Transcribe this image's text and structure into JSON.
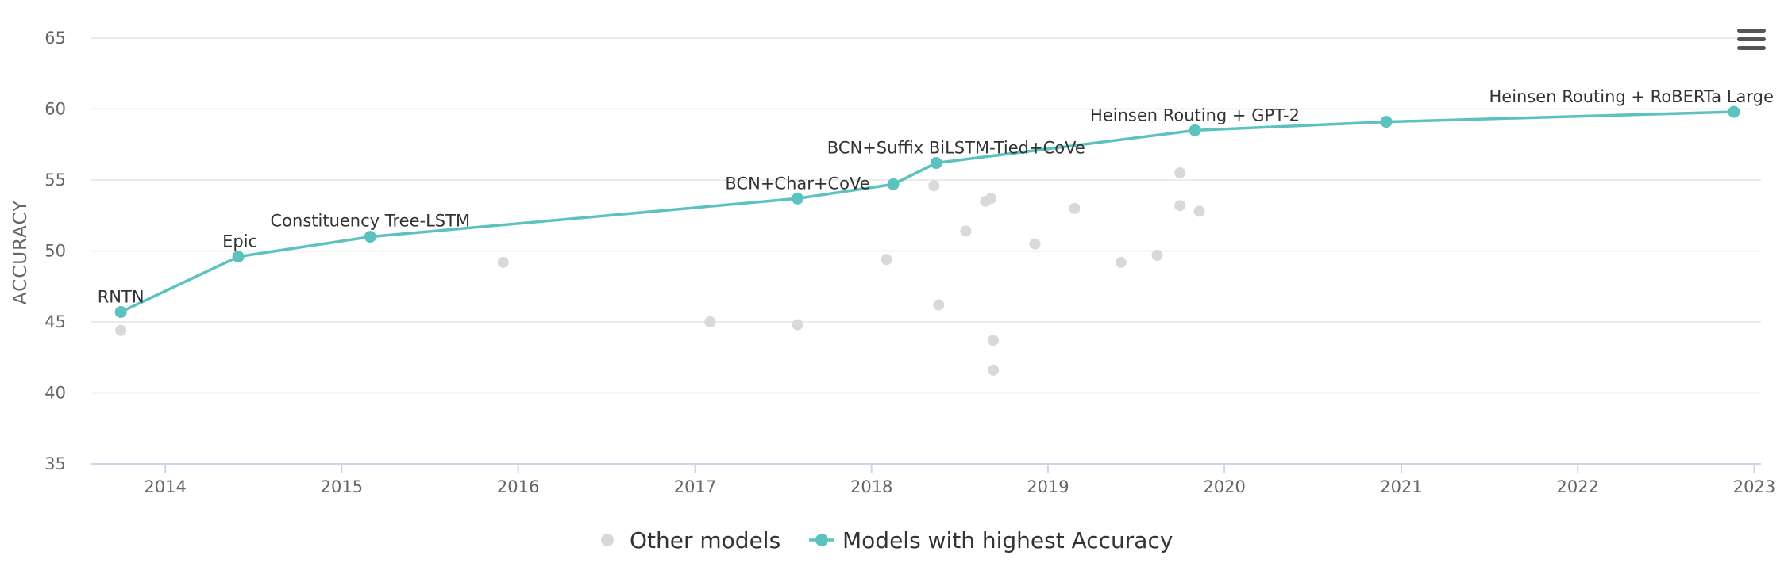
{
  "chart_data": {
    "type": "scatter",
    "xlabel": "",
    "ylabel": "ACCURACY",
    "ylim": [
      35,
      65
    ],
    "xlim": [
      "2013-08-01",
      "2023-01-15"
    ],
    "y_ticks": [
      35,
      40,
      45,
      50,
      55,
      60,
      65
    ],
    "x_ticks": [
      "2014",
      "2015",
      "2016",
      "2017",
      "2018",
      "2019",
      "2020",
      "2021",
      "2022",
      "2023"
    ],
    "grid": true,
    "legend_position": "bottom",
    "series": [
      {
        "name": "Other models",
        "color": "#d9d9d9",
        "mode": "markers",
        "points": [
          {
            "x": "2013-10-01",
            "y": 44.4
          },
          {
            "x": "2015-12-01",
            "y": 49.2
          },
          {
            "x": "2017-02-01",
            "y": 45.0
          },
          {
            "x": "2017-08-01",
            "y": 44.8
          },
          {
            "x": "2018-02-01",
            "y": 49.4
          },
          {
            "x": "2018-05-10",
            "y": 54.6
          },
          {
            "x": "2018-05-20",
            "y": 46.2
          },
          {
            "x": "2018-07-15",
            "y": 51.4
          },
          {
            "x": "2018-08-25",
            "y": 53.5
          },
          {
            "x": "2018-09-05",
            "y": 53.7
          },
          {
            "x": "2018-09-10",
            "y": 43.7
          },
          {
            "x": "2018-09-10",
            "y": 41.6
          },
          {
            "x": "2018-12-05",
            "y": 50.5
          },
          {
            "x": "2019-02-25",
            "y": 53.0
          },
          {
            "x": "2019-06-01",
            "y": 49.2
          },
          {
            "x": "2019-08-15",
            "y": 49.7
          },
          {
            "x": "2019-10-01",
            "y": 55.5
          },
          {
            "x": "2019-10-01",
            "y": 53.2
          },
          {
            "x": "2019-11-10",
            "y": 52.8
          }
        ]
      },
      {
        "name": "Models with highest Accuracy",
        "color": "#5bc2bf",
        "mode": "lines+markers",
        "points": [
          {
            "x": "2013-10-01",
            "y": 45.7,
            "label": "RNTN"
          },
          {
            "x": "2014-06-01",
            "y": 49.6,
            "label": "Epic"
          },
          {
            "x": "2015-03-01",
            "y": 51.0,
            "label": "Constituency Tree-LSTM"
          },
          {
            "x": "2017-08-01",
            "y": 53.7,
            "label": "BCN+Char+CoVe"
          },
          {
            "x": "2018-02-15",
            "y": 54.7,
            "label": ""
          },
          {
            "x": "2018-05-15",
            "y": 56.2,
            "label": "BCN+Suffix BiLSTM-Tied+CoVe"
          },
          {
            "x": "2019-11-01",
            "y": 58.5,
            "label": "Heinsen Routing + GPT-2"
          },
          {
            "x": "2020-12-01",
            "y": 59.1,
            "label": ""
          },
          {
            "x": "2022-11-20",
            "y": 59.8,
            "label": "Heinsen Routing + RoBERTa Large"
          }
        ]
      }
    ]
  },
  "ui": {
    "menu_icon": "hamburger-menu-icon"
  }
}
